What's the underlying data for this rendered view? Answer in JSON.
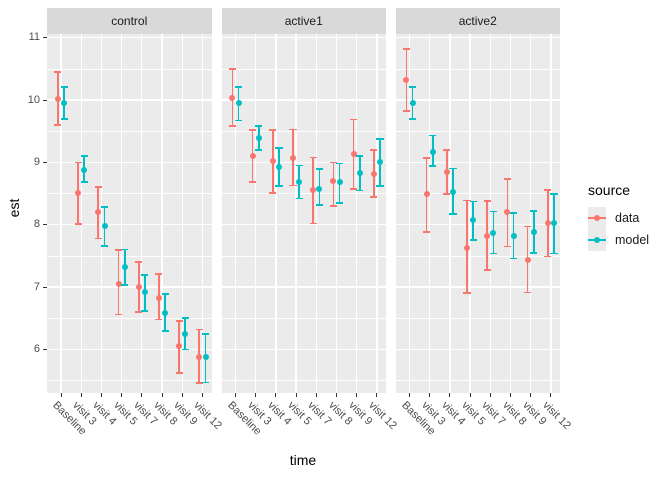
{
  "axes": {
    "x_title": "time",
    "y_title": "est"
  },
  "legend": {
    "title": "source",
    "entries": [
      {
        "label": "data",
        "color": "#F8766D"
      },
      {
        "label": "model",
        "color": "#00BFC4"
      }
    ]
  },
  "chart_data": {
    "type": "pointrange",
    "title": "",
    "xlabel": "time",
    "ylabel": "est",
    "x_categories": [
      "Baseline",
      "visit 3",
      "visit 4",
      "visit 5",
      "visit 7",
      "visit 8",
      "visit 9",
      "visit 12"
    ],
    "y_major_ticks": [
      6,
      7,
      8,
      9,
      10,
      11
    ],
    "y_minor_ticks": [
      5.5,
      6.5,
      7.5,
      8.5,
      9.5,
      10.5
    ],
    "ylim": [
      5.3,
      11.06
    ],
    "grid": "on",
    "legend_position": "right",
    "facets": [
      {
        "name": "control",
        "series": [
          {
            "name": "data",
            "color": "#F8766D",
            "points": [
              {
                "x": "Baseline",
                "mid": 10.02,
                "lo": 9.6,
                "hi": 10.45
              },
              {
                "x": "visit 3",
                "mid": 8.51,
                "lo": 8.01,
                "hi": 9.0
              },
              {
                "x": "visit 4",
                "mid": 8.21,
                "lo": 7.78,
                "hi": 8.61
              },
              {
                "x": "visit 5",
                "mid": 7.05,
                "lo": 6.56,
                "hi": 7.59
              },
              {
                "x": "visit 7",
                "mid": 7.0,
                "lo": 6.6,
                "hi": 7.4
              },
              {
                "x": "visit 8",
                "mid": 6.83,
                "lo": 6.48,
                "hi": 7.21
              },
              {
                "x": "visit 9",
                "mid": 6.05,
                "lo": 5.62,
                "hi": 6.45
              },
              {
                "x": "visit 12",
                "mid": 5.88,
                "lo": 5.46,
                "hi": 6.32
              }
            ]
          },
          {
            "name": "model",
            "color": "#00BFC4",
            "points": [
              {
                "x": "Baseline",
                "mid": 9.96,
                "lo": 9.7,
                "hi": 10.21
              },
              {
                "x": "visit 3",
                "mid": 8.88,
                "lo": 8.69,
                "hi": 9.1
              },
              {
                "x": "visit 4",
                "mid": 7.98,
                "lo": 7.66,
                "hi": 8.28
              },
              {
                "x": "visit 5",
                "mid": 7.32,
                "lo": 7.03,
                "hi": 7.6
              },
              {
                "x": "visit 7",
                "mid": 6.92,
                "lo": 6.62,
                "hi": 7.19
              },
              {
                "x": "visit 8",
                "mid": 6.59,
                "lo": 6.29,
                "hi": 6.89
              },
              {
                "x": "visit 9",
                "mid": 6.25,
                "lo": 6.0,
                "hi": 6.5
              },
              {
                "x": "visit 12",
                "mid": 5.87,
                "lo": 5.47,
                "hi": 6.25
              }
            ]
          }
        ]
      },
      {
        "name": "active1",
        "series": [
          {
            "name": "data",
            "color": "#F8766D",
            "points": [
              {
                "x": "Baseline",
                "mid": 10.04,
                "lo": 9.58,
                "hi": 10.5
              },
              {
                "x": "visit 3",
                "mid": 9.11,
                "lo": 8.69,
                "hi": 9.52
              },
              {
                "x": "visit 4",
                "mid": 9.03,
                "lo": 8.51,
                "hi": 9.52
              },
              {
                "x": "visit 5",
                "mid": 9.07,
                "lo": 8.63,
                "hi": 9.53
              },
              {
                "x": "visit 7",
                "mid": 8.56,
                "lo": 8.02,
                "hi": 9.08
              },
              {
                "x": "visit 8",
                "mid": 8.7,
                "lo": 8.3,
                "hi": 9.0
              },
              {
                "x": "visit 9",
                "mid": 9.14,
                "lo": 8.57,
                "hi": 9.69
              },
              {
                "x": "visit 12",
                "mid": 8.82,
                "lo": 8.44,
                "hi": 9.2
              }
            ]
          },
          {
            "name": "model",
            "color": "#00BFC4",
            "points": [
              {
                "x": "Baseline",
                "mid": 9.95,
                "lo": 9.67,
                "hi": 10.21
              },
              {
                "x": "visit 3",
                "mid": 9.39,
                "lo": 9.2,
                "hi": 9.58
              },
              {
                "x": "visit 4",
                "mid": 8.92,
                "lo": 8.62,
                "hi": 9.23
              },
              {
                "x": "visit 5",
                "mid": 8.69,
                "lo": 8.42,
                "hi": 8.95
              },
              {
                "x": "visit 7",
                "mid": 8.58,
                "lo": 8.32,
                "hi": 8.89
              },
              {
                "x": "visit 8",
                "mid": 8.69,
                "lo": 8.35,
                "hi": 8.98
              },
              {
                "x": "visit 9",
                "mid": 8.83,
                "lo": 8.55,
                "hi": 9.1
              },
              {
                "x": "visit 12",
                "mid": 9.01,
                "lo": 8.62,
                "hi": 9.38
              }
            ]
          }
        ]
      },
      {
        "name": "active2",
        "series": [
          {
            "name": "data",
            "color": "#F8766D",
            "points": [
              {
                "x": "Baseline",
                "mid": 10.32,
                "lo": 9.82,
                "hi": 10.82
              },
              {
                "x": "visit 3",
                "mid": 8.49,
                "lo": 7.88,
                "hi": 9.07
              },
              {
                "x": "visit 4",
                "mid": 8.84,
                "lo": 8.49,
                "hi": 9.2
              },
              {
                "x": "visit 5",
                "mid": 7.63,
                "lo": 6.9,
                "hi": 8.39
              },
              {
                "x": "visit 7",
                "mid": 7.82,
                "lo": 7.27,
                "hi": 8.38
              },
              {
                "x": "visit 8",
                "mid": 8.21,
                "lo": 7.65,
                "hi": 8.73
              },
              {
                "x": "visit 9",
                "mid": 7.43,
                "lo": 6.91,
                "hi": 7.97
              },
              {
                "x": "visit 12",
                "mid": 8.03,
                "lo": 7.49,
                "hi": 8.56
              }
            ]
          },
          {
            "name": "model",
            "color": "#00BFC4",
            "points": [
              {
                "x": "Baseline",
                "mid": 9.95,
                "lo": 9.7,
                "hi": 10.21
              },
              {
                "x": "visit 3",
                "mid": 9.17,
                "lo": 8.94,
                "hi": 9.43
              },
              {
                "x": "visit 4",
                "mid": 8.52,
                "lo": 8.17,
                "hi": 8.9
              },
              {
                "x": "visit 5",
                "mid": 8.08,
                "lo": 7.75,
                "hi": 8.37
              },
              {
                "x": "visit 7",
                "mid": 7.87,
                "lo": 7.54,
                "hi": 8.21
              },
              {
                "x": "visit 8",
                "mid": 7.82,
                "lo": 7.46,
                "hi": 8.19
              },
              {
                "x": "visit 9",
                "mid": 7.89,
                "lo": 7.55,
                "hi": 8.22
              },
              {
                "x": "visit 12",
                "mid": 8.02,
                "lo": 7.54,
                "hi": 8.49
              }
            ]
          }
        ]
      }
    ]
  }
}
